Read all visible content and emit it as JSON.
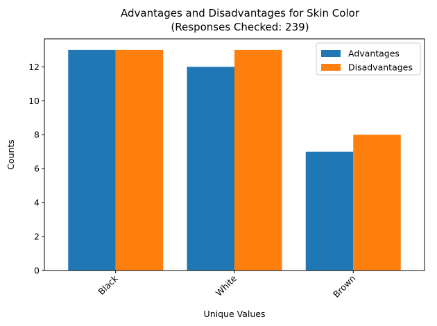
{
  "chart_data": {
    "type": "bar",
    "title": "Advantages and Disadvantages for Skin Color",
    "subtitle": "(Responses Checked: 239)",
    "xlabel": "Unique Values",
    "ylabel": "Counts",
    "categories": [
      "Black",
      "White",
      "Brown"
    ],
    "series": [
      {
        "name": "Advantages",
        "values": [
          13,
          12,
          7
        ],
        "color": "#1f77b4"
      },
      {
        "name": "Disadvantages",
        "values": [
          13,
          13,
          8
        ],
        "color": "#ff7f0e"
      }
    ],
    "ylim": [
      0,
      13.65
    ],
    "yticks": [
      0,
      2,
      4,
      6,
      8,
      10,
      12
    ],
    "legend": "top-right",
    "grid": false
  }
}
